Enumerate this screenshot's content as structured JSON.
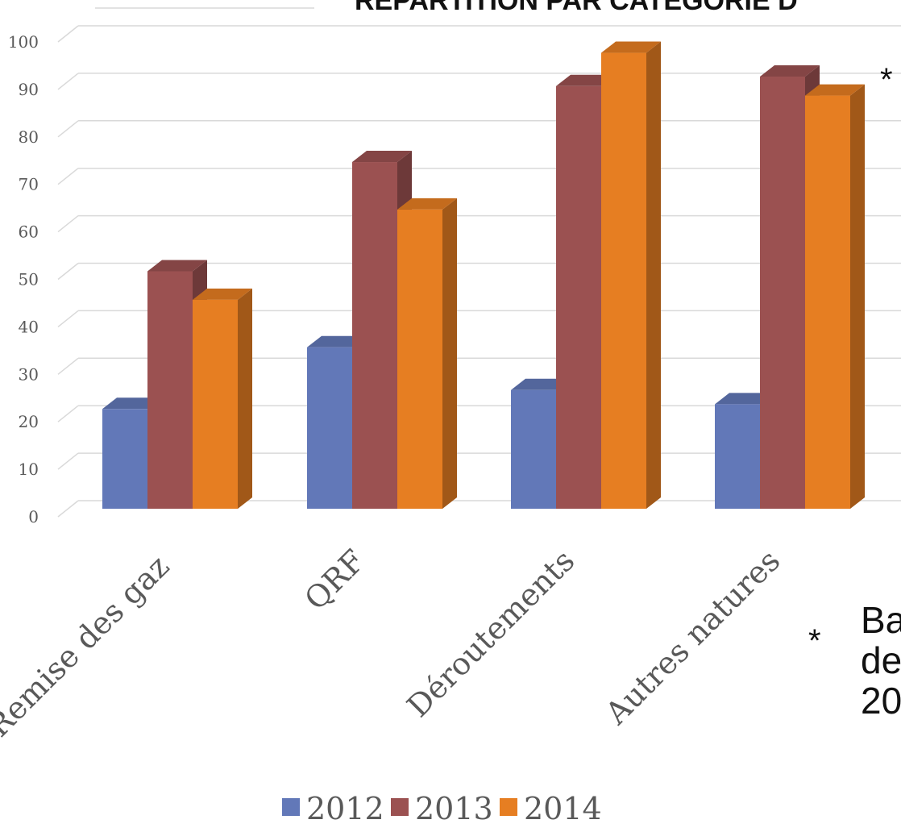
{
  "title": "RÉPARTITION PAR CATÉGORIE D",
  "notes": {
    "top_marker": "*",
    "bottom_marker": "*",
    "bottom_lines": [
      "Ba",
      "de",
      "20"
    ]
  },
  "chart_data": {
    "type": "bar",
    "style": "3d-clustered-column",
    "categories": [
      "Remise des gaz",
      "QRF",
      "Déroutements",
      "Autres natures"
    ],
    "series": [
      {
        "name": "2012",
        "color": "#6278B8",
        "values": [
          21,
          34,
          25,
          22
        ]
      },
      {
        "name": "2013",
        "color": "#9B5151",
        "values": [
          50,
          73,
          89,
          91
        ]
      },
      {
        "name": "2014",
        "color": "#E67E22",
        "values": [
          44,
          63,
          96,
          87
        ]
      }
    ],
    "ylim": [
      0,
      100
    ],
    "yticks": [
      0,
      10,
      20,
      30,
      40,
      50,
      60,
      70,
      80,
      90,
      100
    ],
    "grid": true,
    "legend_position": "bottom"
  }
}
